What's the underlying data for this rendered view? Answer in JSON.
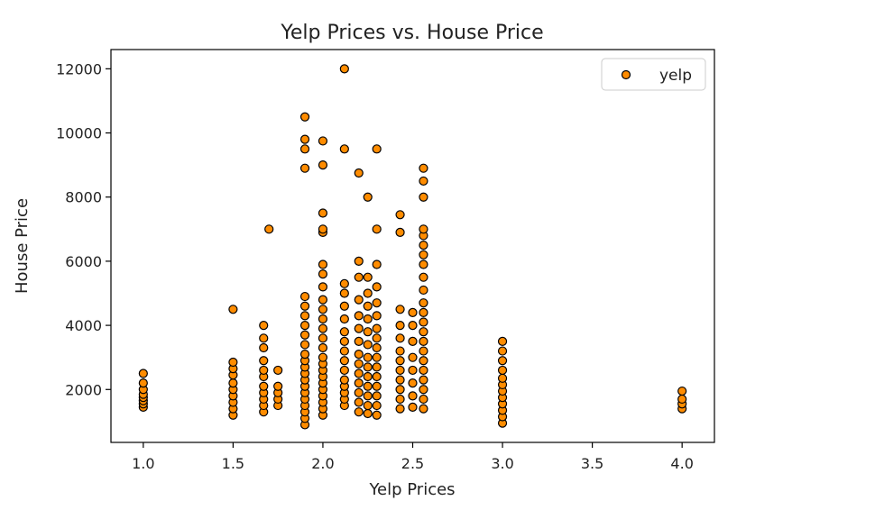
{
  "chart_data": {
    "type": "scatter",
    "title": "Yelp Prices vs. House Price",
    "xlabel": "Yelp Prices",
    "ylabel": "House Price",
    "xlim": [
      0.82,
      4.18
    ],
    "ylim": [
      350,
      12600
    ],
    "xticks": [
      1.0,
      1.5,
      2.0,
      2.5,
      3.0,
      3.5,
      4.0
    ],
    "xtick_labels": [
      "1.0",
      "1.5",
      "2.0",
      "2.5",
      "3.0",
      "3.5",
      "4.0"
    ],
    "yticks": [
      2000,
      4000,
      6000,
      8000,
      10000,
      12000
    ],
    "ytick_labels": [
      "2000",
      "4000",
      "6000",
      "8000",
      "10000",
      "12000"
    ],
    "grid": false,
    "legend": {
      "position": "top-right",
      "entries": [
        "yelp"
      ]
    },
    "series": [
      {
        "name": "yelp",
        "color": "#ff8c00",
        "edgecolor": "#000000",
        "points": [
          [
            1.0,
            1450
          ],
          [
            1.0,
            1550
          ],
          [
            1.0,
            1650
          ],
          [
            1.0,
            1750
          ],
          [
            1.0,
            1850
          ],
          [
            1.0,
            2000
          ],
          [
            1.0,
            2200
          ],
          [
            1.0,
            2500
          ],
          [
            1.5,
            1200
          ],
          [
            1.5,
            1400
          ],
          [
            1.5,
            1600
          ],
          [
            1.5,
            1800
          ],
          [
            1.5,
            2000
          ],
          [
            1.5,
            2200
          ],
          [
            1.5,
            2450
          ],
          [
            1.5,
            2650
          ],
          [
            1.5,
            2850
          ],
          [
            1.5,
            4500
          ],
          [
            1.67,
            1300
          ],
          [
            1.67,
            1500
          ],
          [
            1.67,
            1700
          ],
          [
            1.67,
            1900
          ],
          [
            1.67,
            2100
          ],
          [
            1.67,
            2400
          ],
          [
            1.67,
            2600
          ],
          [
            1.67,
            2900
          ],
          [
            1.67,
            3300
          ],
          [
            1.67,
            3600
          ],
          [
            1.67,
            4000
          ],
          [
            1.7,
            7000
          ],
          [
            1.75,
            1500
          ],
          [
            1.75,
            1700
          ],
          [
            1.75,
            1900
          ],
          [
            1.75,
            2100
          ],
          [
            1.75,
            2600
          ],
          [
            1.9,
            900
          ],
          [
            1.9,
            1100
          ],
          [
            1.9,
            1300
          ],
          [
            1.9,
            1500
          ],
          [
            1.9,
            1700
          ],
          [
            1.9,
            1900
          ],
          [
            1.9,
            2100
          ],
          [
            1.9,
            2300
          ],
          [
            1.9,
            2500
          ],
          [
            1.9,
            2700
          ],
          [
            1.9,
            2900
          ],
          [
            1.9,
            3100
          ],
          [
            1.9,
            3400
          ],
          [
            1.9,
            3700
          ],
          [
            1.9,
            4000
          ],
          [
            1.9,
            4300
          ],
          [
            1.9,
            4600
          ],
          [
            1.9,
            4900
          ],
          [
            1.9,
            8900
          ],
          [
            1.9,
            9500
          ],
          [
            1.9,
            9800
          ],
          [
            1.9,
            10500
          ],
          [
            2.0,
            1200
          ],
          [
            2.0,
            1400
          ],
          [
            2.0,
            1600
          ],
          [
            2.0,
            1800
          ],
          [
            2.0,
            2000
          ],
          [
            2.0,
            2200
          ],
          [
            2.0,
            2400
          ],
          [
            2.0,
            2600
          ],
          [
            2.0,
            2800
          ],
          [
            2.0,
            3000
          ],
          [
            2.0,
            3300
          ],
          [
            2.0,
            3600
          ],
          [
            2.0,
            3900
          ],
          [
            2.0,
            4200
          ],
          [
            2.0,
            4500
          ],
          [
            2.0,
            4800
          ],
          [
            2.0,
            5200
          ],
          [
            2.0,
            5600
          ],
          [
            2.0,
            5900
          ],
          [
            2.0,
            6900
          ],
          [
            2.0,
            7000
          ],
          [
            2.0,
            7500
          ],
          [
            2.0,
            9000
          ],
          [
            2.0,
            9750
          ],
          [
            2.12,
            1500
          ],
          [
            2.12,
            1700
          ],
          [
            2.12,
            1900
          ],
          [
            2.12,
            2100
          ],
          [
            2.12,
            2300
          ],
          [
            2.12,
            2600
          ],
          [
            2.12,
            2900
          ],
          [
            2.12,
            3200
          ],
          [
            2.12,
            3500
          ],
          [
            2.12,
            3800
          ],
          [
            2.12,
            4200
          ],
          [
            2.12,
            4600
          ],
          [
            2.12,
            5000
          ],
          [
            2.12,
            5300
          ],
          [
            2.12,
            9500
          ],
          [
            2.12,
            12000
          ],
          [
            2.2,
            1300
          ],
          [
            2.2,
            1600
          ],
          [
            2.2,
            1900
          ],
          [
            2.2,
            2200
          ],
          [
            2.2,
            2500
          ],
          [
            2.2,
            2800
          ],
          [
            2.2,
            3100
          ],
          [
            2.2,
            3500
          ],
          [
            2.2,
            3900
          ],
          [
            2.2,
            4300
          ],
          [
            2.2,
            4800
          ],
          [
            2.2,
            5500
          ],
          [
            2.2,
            6000
          ],
          [
            2.2,
            8750
          ],
          [
            2.25,
            1250
          ],
          [
            2.25,
            1500
          ],
          [
            2.25,
            1800
          ],
          [
            2.25,
            2100
          ],
          [
            2.25,
            2400
          ],
          [
            2.25,
            2700
          ],
          [
            2.25,
            3000
          ],
          [
            2.25,
            3400
          ],
          [
            2.25,
            3800
          ],
          [
            2.25,
            4200
          ],
          [
            2.25,
            4600
          ],
          [
            2.25,
            5000
          ],
          [
            2.25,
            5500
          ],
          [
            2.25,
            8000
          ],
          [
            2.3,
            1200
          ],
          [
            2.3,
            1500
          ],
          [
            2.3,
            1800
          ],
          [
            2.3,
            2100
          ],
          [
            2.3,
            2400
          ],
          [
            2.3,
            2700
          ],
          [
            2.3,
            3000
          ],
          [
            2.3,
            3300
          ],
          [
            2.3,
            3600
          ],
          [
            2.3,
            3900
          ],
          [
            2.3,
            4300
          ],
          [
            2.3,
            4700
          ],
          [
            2.3,
            5200
          ],
          [
            2.3,
            5900
          ],
          [
            2.3,
            7000
          ],
          [
            2.3,
            9500
          ],
          [
            2.43,
            1400
          ],
          [
            2.43,
            1700
          ],
          [
            2.43,
            2000
          ],
          [
            2.43,
            2300
          ],
          [
            2.43,
            2600
          ],
          [
            2.43,
            2900
          ],
          [
            2.43,
            3200
          ],
          [
            2.43,
            3600
          ],
          [
            2.43,
            4000
          ],
          [
            2.43,
            4500
          ],
          [
            2.43,
            6900
          ],
          [
            2.43,
            7450
          ],
          [
            2.5,
            1450
          ],
          [
            2.5,
            1800
          ],
          [
            2.5,
            2200
          ],
          [
            2.5,
            2600
          ],
          [
            2.5,
            3000
          ],
          [
            2.5,
            3500
          ],
          [
            2.5,
            4000
          ],
          [
            2.5,
            4400
          ],
          [
            2.56,
            1400
          ],
          [
            2.56,
            1700
          ],
          [
            2.56,
            2000
          ],
          [
            2.56,
            2300
          ],
          [
            2.56,
            2600
          ],
          [
            2.56,
            2900
          ],
          [
            2.56,
            3200
          ],
          [
            2.56,
            3500
          ],
          [
            2.56,
            3800
          ],
          [
            2.56,
            4100
          ],
          [
            2.56,
            4400
          ],
          [
            2.56,
            4700
          ],
          [
            2.56,
            5100
          ],
          [
            2.56,
            5500
          ],
          [
            2.56,
            5900
          ],
          [
            2.56,
            6200
          ],
          [
            2.56,
            6500
          ],
          [
            2.56,
            6800
          ],
          [
            2.56,
            7000
          ],
          [
            2.56,
            8000
          ],
          [
            2.56,
            8500
          ],
          [
            2.56,
            8900
          ],
          [
            3.0,
            950
          ],
          [
            3.0,
            1150
          ],
          [
            3.0,
            1350
          ],
          [
            3.0,
            1550
          ],
          [
            3.0,
            1750
          ],
          [
            3.0,
            1950
          ],
          [
            3.0,
            2150
          ],
          [
            3.0,
            2350
          ],
          [
            3.0,
            2600
          ],
          [
            3.0,
            2900
          ],
          [
            3.0,
            3200
          ],
          [
            3.0,
            3500
          ],
          [
            4.0,
            1400
          ],
          [
            4.0,
            1550
          ],
          [
            4.0,
            1700
          ],
          [
            4.0,
            1950
          ]
        ]
      }
    ]
  }
}
